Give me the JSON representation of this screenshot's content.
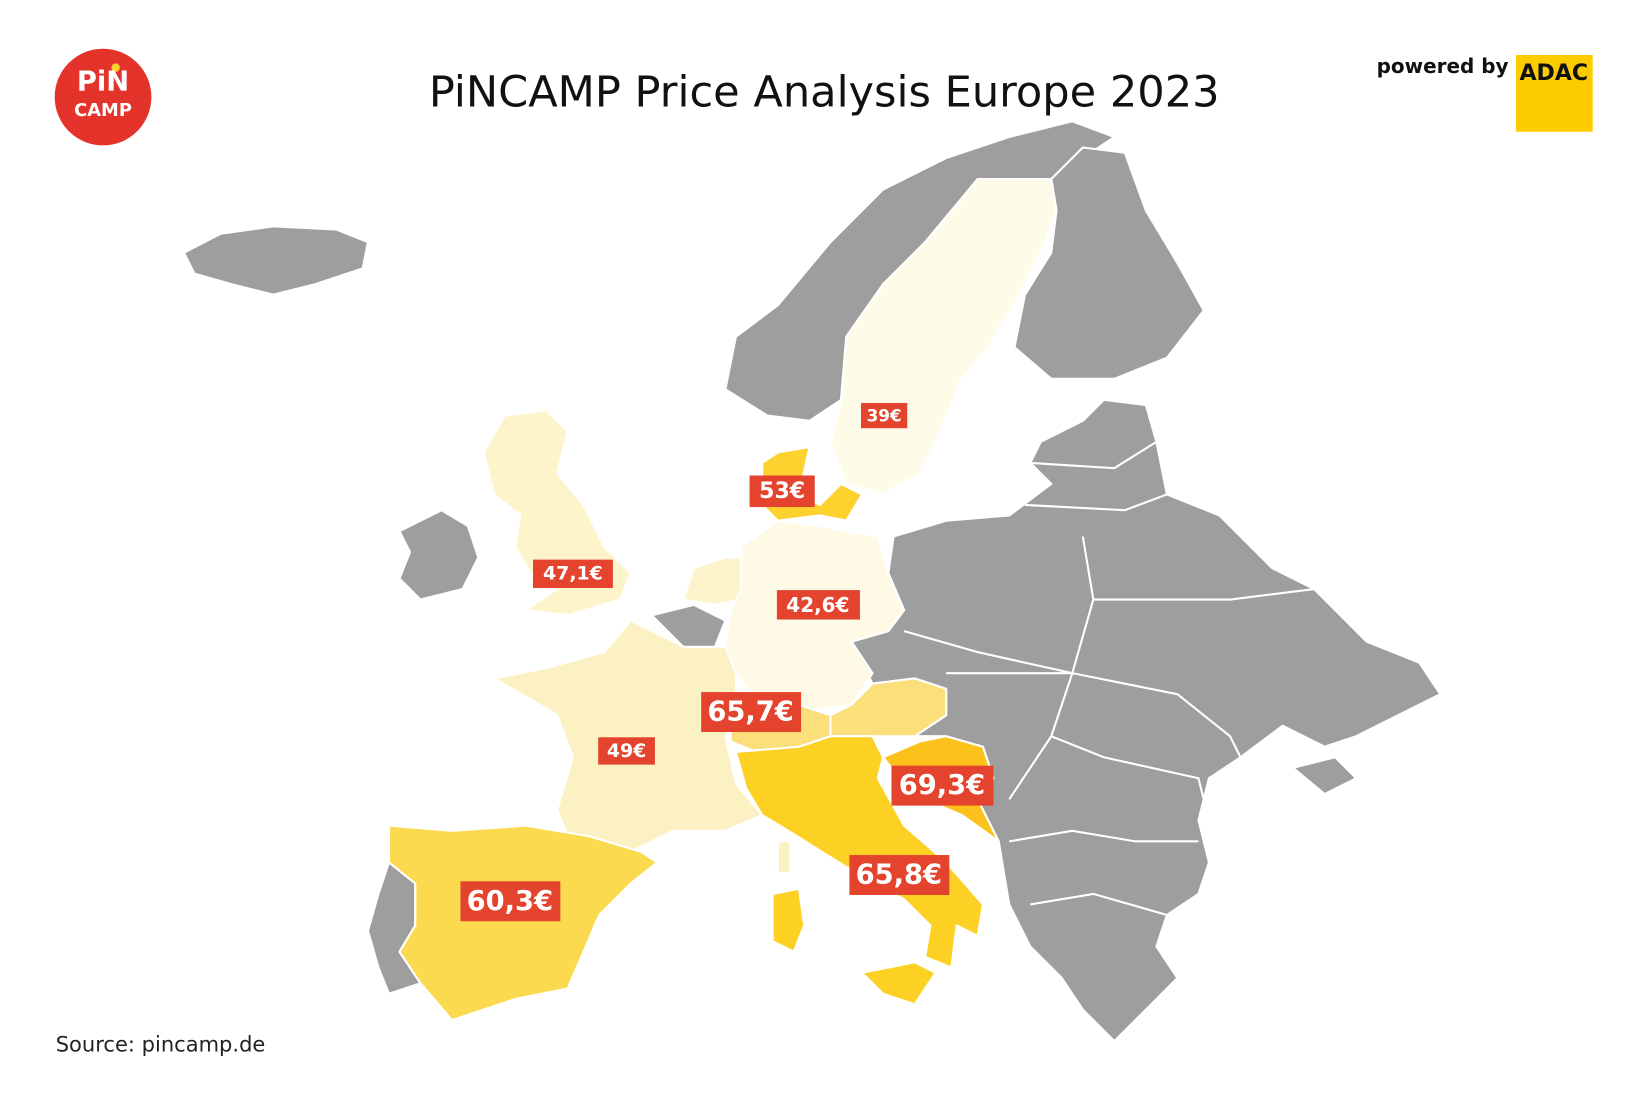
{
  "logo": {
    "line1": "PiN",
    "line2": "CAMP"
  },
  "title": "PiNCAMP Price Analysis Europe 2023",
  "powered_by": "powered by",
  "partner": "ADAC",
  "source": "Source: pincamp.de",
  "other_color": "#9e9e9e",
  "regions": [
    {
      "label": "39€",
      "color": "#fefbe8"
    },
    {
      "label": "53€",
      "color": "#fdd22e"
    },
    {
      "label": "47,1€",
      "color": "#fdf4cc"
    },
    {
      "label": "42,6€",
      "color": "#fefae6"
    },
    {
      "label": "65,7€",
      "color": "#fbdf7a"
    },
    {
      "label": "49€",
      "color": "#fcf1c2"
    },
    {
      "label": "69,3€",
      "color": "#fcc21c"
    },
    {
      "label": "65,8€",
      "color": "#fdd024"
    },
    {
      "label": "60,3€",
      "color": "#fbda4f"
    }
  ]
}
